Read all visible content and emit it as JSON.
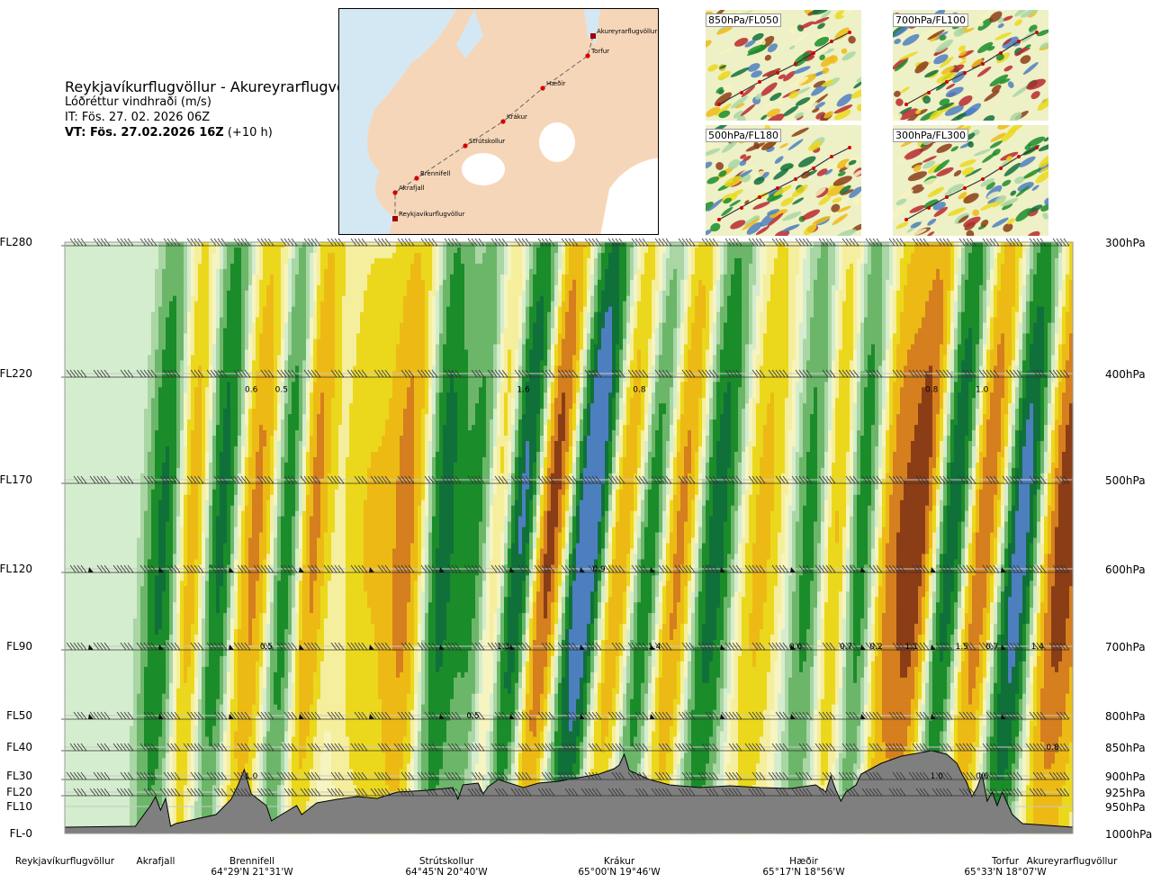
{
  "header": {
    "route": "Reykjavíkurflugvöllur - Akureyrarflugvöllur",
    "parameter": "Lóðréttur vindhraði (m/s)",
    "issue_time": "IT: Fös. 27. 02. 2026 06Z",
    "valid_label": "VT: Fös. 27.02.2026 16Z",
    "valid_lead": "(+10 h)"
  },
  "route_map": {
    "points": [
      "Akureyrarflugvöllur",
      "Torfur",
      "Hæðir",
      "Krákur",
      "Strútskollur",
      "Brennifell",
      "Akrafjall",
      "Reykjavíkurflugvöllur"
    ],
    "colors": {
      "sea": "#d4e8f4",
      "land": "#f6d6b8",
      "ice": "#ffffff",
      "route": "#666666",
      "point": "#d40000"
    }
  },
  "thumbnails": [
    {
      "label": "850hPa/FL050"
    },
    {
      "label": "700hPa/FL100"
    },
    {
      "label": "500hPa/FL180"
    },
    {
      "label": "300hPa/FL300"
    }
  ],
  "chart_data": {
    "type": "heatmap",
    "title": "Reykjavíkurflugvöllur - Akureyrarflugvöllur",
    "variable": "Lóðréttur vindhraði (m/s)",
    "y_left_ticks": [
      "FL280",
      "FL220",
      "FL170",
      "FL120",
      "FL90",
      "FL50",
      "FL40",
      "FL30",
      "FL20",
      "FL10",
      "FL-0"
    ],
    "y_right_ticks": [
      "300hPa",
      "400hPa",
      "500hPa",
      "600hPa",
      "700hPa",
      "800hPa",
      "850hPa",
      "900hPa",
      "925hPa",
      "950hPa",
      "1000hPa"
    ],
    "y_levels_hpa": [
      300,
      400,
      500,
      600,
      700,
      800,
      850,
      900,
      925,
      950,
      1000
    ],
    "x_stations": [
      {
        "name": "Reykjavíkurflugvöllur",
        "coord": "",
        "x": 0.0
      },
      {
        "name": "Akrafjall",
        "coord": "",
        "x": 0.09
      },
      {
        "name": "Brennifell",
        "coord": "64°29'N 21°31'W",
        "x": 0.175
      },
      {
        "name": "Strútskollur",
        "coord": "64°45'N 20°40'W",
        "x": 0.38
      },
      {
        "name": "Krákur",
        "coord": "65°00'N 19°46'W",
        "x": 0.57
      },
      {
        "name": "Hæðir",
        "coord": "65°17'N 18°56'W",
        "x": 0.77
      },
      {
        "name": "Torfur",
        "coord": "65°33'N 18°07'W",
        "x": 0.96
      },
      {
        "name": "Akureyrarflugvöllur",
        "coord": "",
        "x": 1.06
      }
    ],
    "colorscale": {
      "values": [
        -3,
        -2,
        -1.5,
        -1,
        -0.6,
        -0.3,
        0,
        0.3,
        0.6,
        1,
        1.5,
        2,
        3
      ],
      "colors": [
        "#9a1216",
        "#8b3d16",
        "#d57f1e",
        "#edba15",
        "#ebd81c",
        "#f5ee9c",
        "#f6f4c0",
        "#d4edce",
        "#a9d6a4",
        "#6cb66a",
        "#1b8c2a",
        "#10703a",
        "#4d7fbf",
        "#6a5ad6"
      ]
    },
    "bands": [
      {
        "x": 0.1,
        "tilt": -0.03,
        "amp": 1.8,
        "width": 0.02
      },
      {
        "x": 0.125,
        "tilt": -0.02,
        "amp": -1.7,
        "width": 0.018
      },
      {
        "x": 0.155,
        "tilt": -0.035,
        "amp": 1.9,
        "width": 0.018
      },
      {
        "x": 0.19,
        "tilt": -0.04,
        "amp": -1.8,
        "width": 0.022
      },
      {
        "x": 0.22,
        "tilt": -0.03,
        "amp": 1.7,
        "width": 0.018
      },
      {
        "x": 0.245,
        "tilt": -0.035,
        "amp": -1.8,
        "width": 0.016
      },
      {
        "x": 0.3,
        "tilt": -0.02,
        "amp": -1.0,
        "width": 0.03
      },
      {
        "x": 0.34,
        "tilt": -0.025,
        "amp": -1.6,
        "width": 0.02
      },
      {
        "x": 0.375,
        "tilt": -0.03,
        "amp": 1.8,
        "width": 0.018
      },
      {
        "x": 0.41,
        "tilt": -0.035,
        "amp": 1.2,
        "width": 0.018
      },
      {
        "x": 0.43,
        "tilt": -0.04,
        "amp": -1.4,
        "width": 0.014
      },
      {
        "x": 0.455,
        "tilt": -0.05,
        "amp": 2.6,
        "width": 0.02
      },
      {
        "x": 0.48,
        "tilt": -0.055,
        "amp": -2.8,
        "width": 0.02
      },
      {
        "x": 0.52,
        "tilt": -0.055,
        "amp": 3.0,
        "width": 0.022
      },
      {
        "x": 0.555,
        "tilt": -0.06,
        "amp": -2.2,
        "width": 0.022
      },
      {
        "x": 0.58,
        "tilt": -0.05,
        "amp": 2.2,
        "width": 0.022
      },
      {
        "x": 0.61,
        "tilt": -0.05,
        "amp": -2.2,
        "width": 0.022
      },
      {
        "x": 0.645,
        "tilt": -0.045,
        "amp": 2.0,
        "width": 0.024
      },
      {
        "x": 0.69,
        "tilt": -0.04,
        "amp": -1.2,
        "width": 0.026
      },
      {
        "x": 0.74,
        "tilt": -0.03,
        "amp": 1.3,
        "width": 0.02
      },
      {
        "x": 0.765,
        "tilt": -0.03,
        "amp": -1.4,
        "width": 0.016
      },
      {
        "x": 0.79,
        "tilt": -0.03,
        "amp": 1.4,
        "width": 0.016
      },
      {
        "x": 0.82,
        "tilt": -0.04,
        "amp": -1.4,
        "width": 0.016
      },
      {
        "x": 0.85,
        "tilt": -0.045,
        "amp": -2.6,
        "width": 0.022
      },
      {
        "x": 0.88,
        "tilt": -0.05,
        "amp": 2.6,
        "width": 0.022
      },
      {
        "x": 0.91,
        "tilt": -0.055,
        "amp": -2.4,
        "width": 0.022
      },
      {
        "x": 0.95,
        "tilt": -0.05,
        "amp": 2.8,
        "width": 0.022
      },
      {
        "x": 0.99,
        "tilt": -0.04,
        "amp": -2.4,
        "width": 0.03
      }
    ],
    "contour_labels": [
      {
        "text": "0.6",
        "x": 0.185,
        "y": 415
      },
      {
        "text": "0.5",
        "x": 0.215,
        "y": 415
      },
      {
        "text": "1.6",
        "x": 0.455,
        "y": 415
      },
      {
        "text": "0.8",
        "x": 0.57,
        "y": 415
      },
      {
        "text": "0.8",
        "x": 0.86,
        "y": 415
      },
      {
        "text": "1.0",
        "x": 0.91,
        "y": 415
      },
      {
        "text": "0.9",
        "x": 0.53,
        "y": 600
      },
      {
        "text": "0.5",
        "x": 0.2,
        "y": 700
      },
      {
        "text": "1.3",
        "x": 0.435,
        "y": 700
      },
      {
        "text": "1.4",
        "x": 0.585,
        "y": 700
      },
      {
        "text": "0.6",
        "x": 0.725,
        "y": 700
      },
      {
        "text": "0.7",
        "x": 0.775,
        "y": 700
      },
      {
        "text": "0.2",
        "x": 0.805,
        "y": 700
      },
      {
        "text": "1.1",
        "x": 0.84,
        "y": 700
      },
      {
        "text": "1.5",
        "x": 0.89,
        "y": 700
      },
      {
        "text": "0.7",
        "x": 0.92,
        "y": 700
      },
      {
        "text": "1.4",
        "x": 0.965,
        "y": 700
      },
      {
        "text": "0.5",
        "x": 0.405,
        "y": 800
      },
      {
        "text": "0.8",
        "x": 0.98,
        "y": 850
      },
      {
        "text": "1.0",
        "x": 0.185,
        "y": 900
      },
      {
        "text": "1.0",
        "x": 0.865,
        "y": 900
      },
      {
        "text": "0.6",
        "x": 0.91,
        "y": 900
      }
    ],
    "terrain_colors": {
      "fill": "#7f7f7f",
      "line": "#000000"
    },
    "grid": false
  }
}
